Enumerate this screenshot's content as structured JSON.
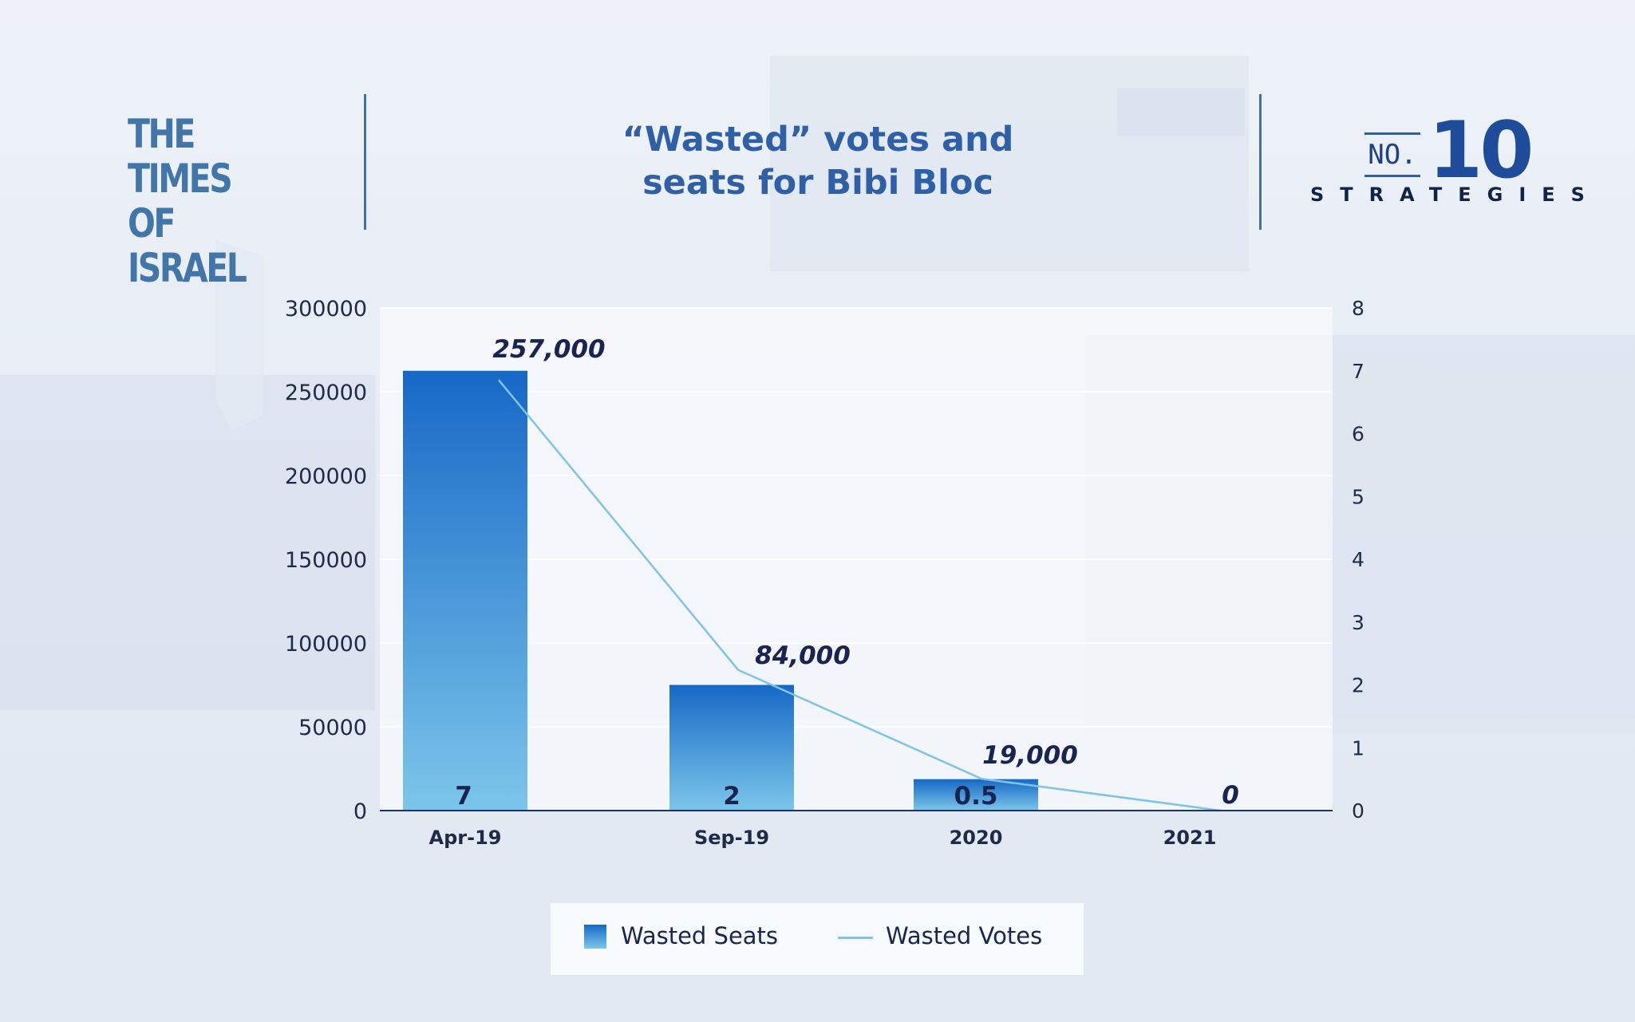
{
  "header": {
    "logo_line1": "THE TIMES",
    "logo_line2": "OF ISRAEL",
    "title_line1": "“Wasted” votes and",
    "title_line2": "seats for Bibi Bloc",
    "brand_no": "NO.",
    "brand_num": "10",
    "brand_sub": "STRATEGIES"
  },
  "chart_data": {
    "type": "bar",
    "categories": [
      "Apr-19",
      "Sep-19",
      "2020",
      "2021"
    ],
    "series": [
      {
        "name": "Wasted Seats",
        "type": "bar",
        "axis": "right",
        "values": [
          7,
          2,
          0.5,
          0
        ],
        "labels": [
          "7",
          "2",
          "0.5",
          ""
        ]
      },
      {
        "name": "Wasted Votes",
        "type": "line",
        "axis": "left",
        "values": [
          257000,
          84000,
          19000,
          0
        ],
        "labels": [
          "257,000",
          "84,000",
          "19,000",
          "0"
        ]
      }
    ],
    "left_axis": {
      "ticks": [
        "0",
        "50000",
        "100000",
        "150000",
        "200000",
        "250000",
        "300000"
      ],
      "ylim": [
        0,
        300000
      ]
    },
    "right_axis": {
      "ticks": [
        "0",
        "1",
        "2",
        "3",
        "4",
        "5",
        "6",
        "7",
        "8"
      ],
      "ylim": [
        0,
        8
      ]
    },
    "grid": true,
    "legend_position": "bottom",
    "colors": {
      "bar_top": "#1668c6",
      "bar_bottom": "#7cc6ea",
      "line": "#7fc3e6"
    }
  }
}
